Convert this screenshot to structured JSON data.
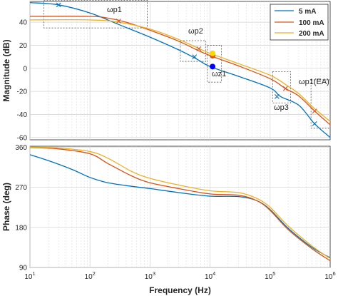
{
  "chart_data": [
    {
      "type": "line",
      "ylabel": "Magnitude (dB)",
      "xscale": "log",
      "xlim": [
        10,
        1000000
      ],
      "ylim": [
        -62,
        58
      ],
      "yticks": [
        -60,
        -40,
        -20,
        0,
        20,
        40
      ],
      "grid": true,
      "legend": {
        "placement": "top-right",
        "entries": [
          "5 mA",
          "100 mA",
          "200 mA"
        ]
      },
      "series": [
        {
          "name": "5 mA",
          "color": "#0072BD",
          "x": [
            10,
            30,
            100,
            300,
            1000,
            3000,
            6000,
            10000,
            30000,
            100000,
            150000,
            300000,
            550000,
            1000000
          ],
          "y": [
            57,
            55,
            48,
            38,
            27,
            16,
            8,
            1.5,
            -7,
            -17,
            -24.5,
            -32,
            -48,
            -60
          ]
        },
        {
          "name": "100 mA",
          "color": "#D95319",
          "x": [
            10,
            100,
            200,
            400,
            1000,
            3000,
            6000,
            10000,
            30000,
            100000,
            180000,
            300000,
            550000,
            1000000
          ],
          "y": [
            45,
            45,
            43.5,
            40,
            33,
            23.5,
            16,
            11,
            2,
            -9,
            -17.5,
            -24,
            -37,
            -49
          ]
        },
        {
          "name": "200 mA",
          "color": "#EDB120",
          "x": [
            10,
            100,
            300,
            1000,
            3000,
            6000,
            10000,
            30000,
            100000,
            180000,
            300000,
            550000,
            1000000
          ],
          "y": [
            42,
            42,
            40,
            34,
            25,
            18,
            13,
            4,
            -6,
            -14,
            -22,
            -35,
            -46
          ]
        }
      ],
      "markers": [
        {
          "label": "ωp1",
          "x": 30,
          "y": 55,
          "color": "#0072BD"
        },
        {
          "label": "ωp1",
          "x": 300,
          "y": 41,
          "color": "#D95319"
        },
        {
          "label": "ωp2",
          "x": 5500,
          "y": 10,
          "color": "#0072BD"
        },
        {
          "label": "ωp2",
          "x": 6500,
          "y": 17,
          "color": "#D95319"
        },
        {
          "label": "ωp3",
          "x": 130000,
          "y": -24.5,
          "color": "#0072BD"
        },
        {
          "label": "ωp3",
          "x": 180000,
          "y": -17.5,
          "color": "#D95319"
        },
        {
          "label": "ωp1(EA)",
          "x": 550000,
          "y": -48,
          "color": "#0072BD"
        },
        {
          "label": "ωp1(EA)",
          "x": 550000,
          "y": -37,
          "color": "#D95319"
        }
      ],
      "zeros": [
        {
          "x": 11000,
          "y": 1.5,
          "color": "#0000FF"
        },
        {
          "x": 11000,
          "y": 11,
          "color": "#D95319"
        },
        {
          "x": 11000,
          "y": 13,
          "color": "#FFD700"
        }
      ],
      "annotations": [
        "ωp1",
        "ωp2",
        "ωz1",
        "ωp3",
        "ωp1(EA)"
      ]
    },
    {
      "type": "line",
      "xlabel": "Frequency  (Hz)",
      "ylabel": "Phase (deg)",
      "xscale": "log",
      "xlim": [
        10,
        1000000
      ],
      "ylim": [
        90,
        362
      ],
      "yticks": [
        90,
        180,
        270,
        360
      ],
      "xticks": [
        "10^1",
        "10^2",
        "10^3",
        "10^4",
        "10^5",
        "10^6"
      ],
      "grid": true,
      "series": [
        {
          "name": "5 mA",
          "color": "#0072BD",
          "x": [
            10,
            20,
            50,
            100,
            200,
            500,
            1000,
            3000,
            10000,
            30000,
            60000,
            100000,
            200000,
            500000,
            1000000
          ],
          "y": [
            343,
            330,
            310,
            292,
            280,
            272,
            267,
            258,
            250,
            249,
            240,
            220,
            178,
            135,
            112
          ]
        },
        {
          "name": "100 mA",
          "color": "#D95319",
          "x": [
            10,
            30,
            100,
            200,
            500,
            1000,
            3000,
            10000,
            30000,
            60000,
            100000,
            200000,
            500000,
            1000000
          ],
          "y": [
            359,
            356,
            345,
            323,
            295,
            280,
            267,
            255,
            252,
            240,
            218,
            175,
            132,
            105
          ]
        },
        {
          "name": "200 mA",
          "color": "#EDB120",
          "x": [
            10,
            30,
            100,
            200,
            500,
            1000,
            3000,
            10000,
            30000,
            60000,
            100000,
            200000,
            500000,
            1000000
          ],
          "y": [
            360,
            358,
            350,
            335,
            305,
            290,
            275,
            262,
            258,
            245,
            225,
            183,
            138,
            110
          ]
        }
      ]
    }
  ]
}
